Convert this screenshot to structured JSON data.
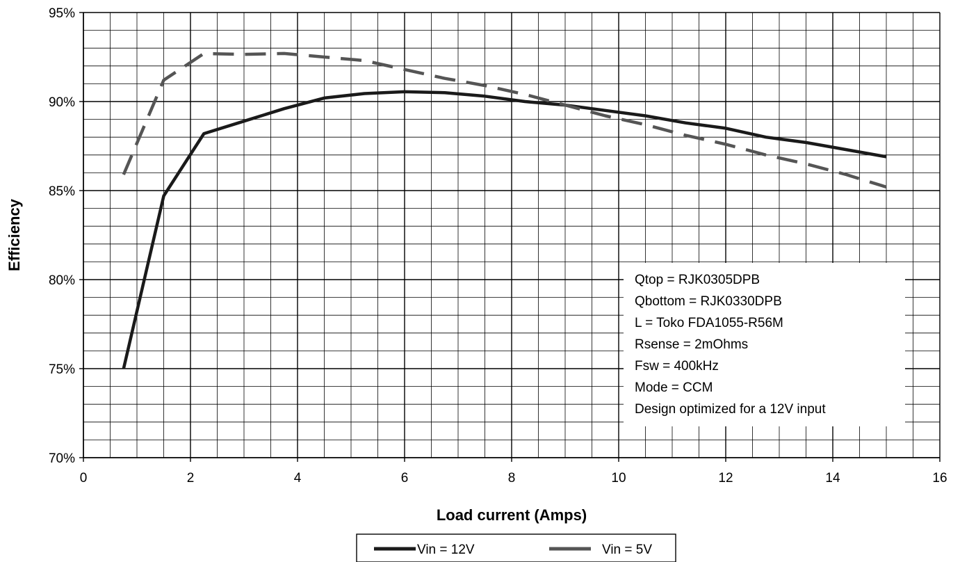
{
  "chart_data": {
    "type": "line",
    "xlabel": "Load current (Amps)",
    "ylabel": "Efficiency",
    "xlim": [
      0,
      16
    ],
    "ylim": [
      70,
      95
    ],
    "x_ticks": [
      0,
      2,
      4,
      6,
      8,
      10,
      12,
      14,
      16
    ],
    "y_ticks": [
      70,
      75,
      80,
      85,
      90,
      95
    ],
    "x_tick_labels": [
      "0",
      "2",
      "4",
      "6",
      "8",
      "10",
      "12",
      "14",
      "16"
    ],
    "y_tick_labels": [
      "70%",
      "75%",
      "80%",
      "85%",
      "90%",
      "95%"
    ],
    "grid": true,
    "legend_position": "bottom",
    "series": [
      {
        "name": "Vin = 12V",
        "color": "#1a1a1a",
        "dash": "solid",
        "x": [
          0.75,
          1.5,
          2.25,
          3.0,
          3.75,
          4.5,
          5.25,
          6.0,
          6.75,
          7.5,
          8.25,
          9.0,
          9.75,
          10.5,
          11.25,
          12.0,
          12.75,
          13.5,
          14.25,
          15.0
        ],
        "y": [
          75.0,
          84.7,
          88.2,
          88.9,
          89.6,
          90.2,
          90.45,
          90.55,
          90.5,
          90.3,
          90.0,
          89.8,
          89.5,
          89.2,
          88.8,
          88.5,
          88.0,
          87.7,
          87.3,
          86.9
        ]
      },
      {
        "name": "Vin = 5V",
        "color": "#555555",
        "dash": "dashed",
        "x": [
          0.75,
          1.5,
          2.25,
          3.0,
          3.75,
          4.5,
          5.25,
          6.0,
          6.75,
          7.5,
          8.25,
          9.0,
          9.75,
          10.5,
          11.25,
          12.0,
          12.75,
          13.5,
          14.25,
          15.0
        ],
        "y": [
          85.9,
          91.2,
          92.7,
          92.65,
          92.7,
          92.5,
          92.3,
          91.8,
          91.3,
          90.9,
          90.4,
          89.8,
          89.2,
          88.7,
          88.1,
          87.6,
          87.0,
          86.5,
          85.9,
          85.2
        ]
      }
    ],
    "annotations": [
      "Qtop = RJK0305DPB",
      "Qbottom = RJK0330DPB",
      "L = Toko FDA1055-R56M",
      "Rsense = 2mOhms",
      "Fsw = 400kHz",
      "Mode = CCM",
      "Design optimized for a 12V input"
    ]
  }
}
